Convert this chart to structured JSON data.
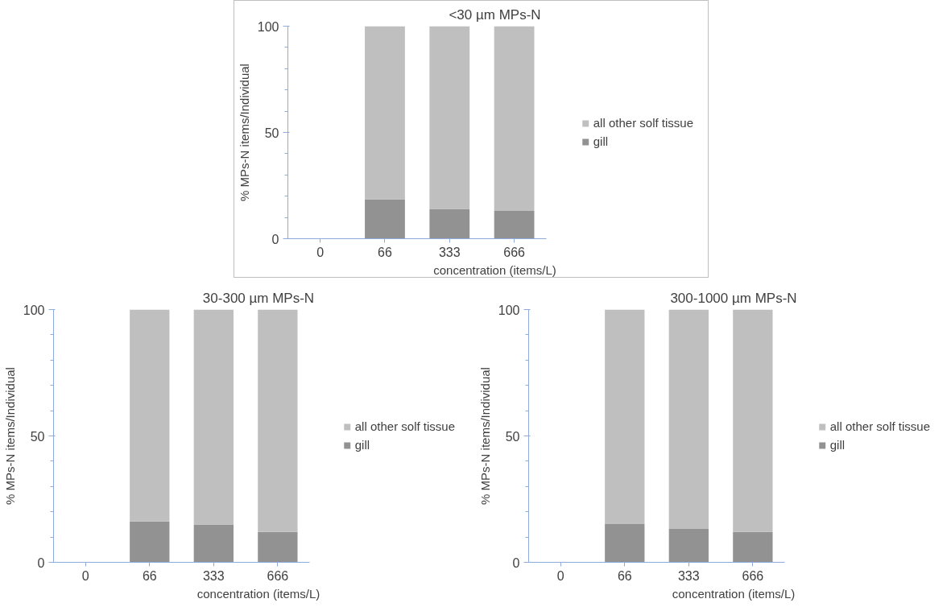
{
  "chart_data": [
    {
      "type": "bar",
      "stacked": true,
      "title": "<30 µm MPs-N",
      "xlabel": "concentration (items/L)",
      "ylabel": "% MPs-N items/Individual",
      "categories": [
        "0",
        "66",
        "333",
        "666"
      ],
      "series": [
        {
          "name": "gill",
          "color": "#929292",
          "values": [
            0,
            18.6,
            14.0,
            13.1
          ]
        },
        {
          "name": "all other solf tissue",
          "color": "#bfbfbf",
          "values": [
            0,
            81.4,
            86.0,
            86.9
          ]
        }
      ],
      "ylim": [
        0,
        100
      ],
      "yticks": [
        0,
        50,
        100
      ],
      "grid": false,
      "legend": "right"
    },
    {
      "type": "bar",
      "stacked": true,
      "title": "30-300 µm MPs-N",
      "xlabel": "concentration (items/L)",
      "ylabel": "% MPs-N items/Individual",
      "categories": [
        "0",
        "66",
        "333",
        "666"
      ],
      "series": [
        {
          "name": "gill",
          "color": "#929292",
          "values": [
            0,
            16.2,
            15.0,
            12.0
          ]
        },
        {
          "name": "all other solf tissue",
          "color": "#bfbfbf",
          "values": [
            0,
            83.8,
            85.0,
            88.0
          ]
        }
      ],
      "ylim": [
        0,
        100
      ],
      "yticks": [
        0,
        50,
        100
      ],
      "grid": false,
      "legend": "right"
    },
    {
      "type": "bar",
      "stacked": true,
      "title": "300-1000 µm MPs-N",
      "xlabel": "concentration (items/L)",
      "ylabel": "% MPs-N items/Individual",
      "categories": [
        "0",
        "66",
        "333",
        "666"
      ],
      "series": [
        {
          "name": "gill",
          "color": "#929292",
          "values": [
            0,
            15.1,
            13.2,
            12.0
          ]
        },
        {
          "name": "all other solf tissue",
          "color": "#bfbfbf",
          "values": [
            0,
            84.9,
            86.8,
            88.0
          ]
        }
      ],
      "ylim": [
        0,
        100
      ],
      "yticks": [
        0,
        50,
        100
      ],
      "grid": false,
      "legend": "right"
    }
  ]
}
